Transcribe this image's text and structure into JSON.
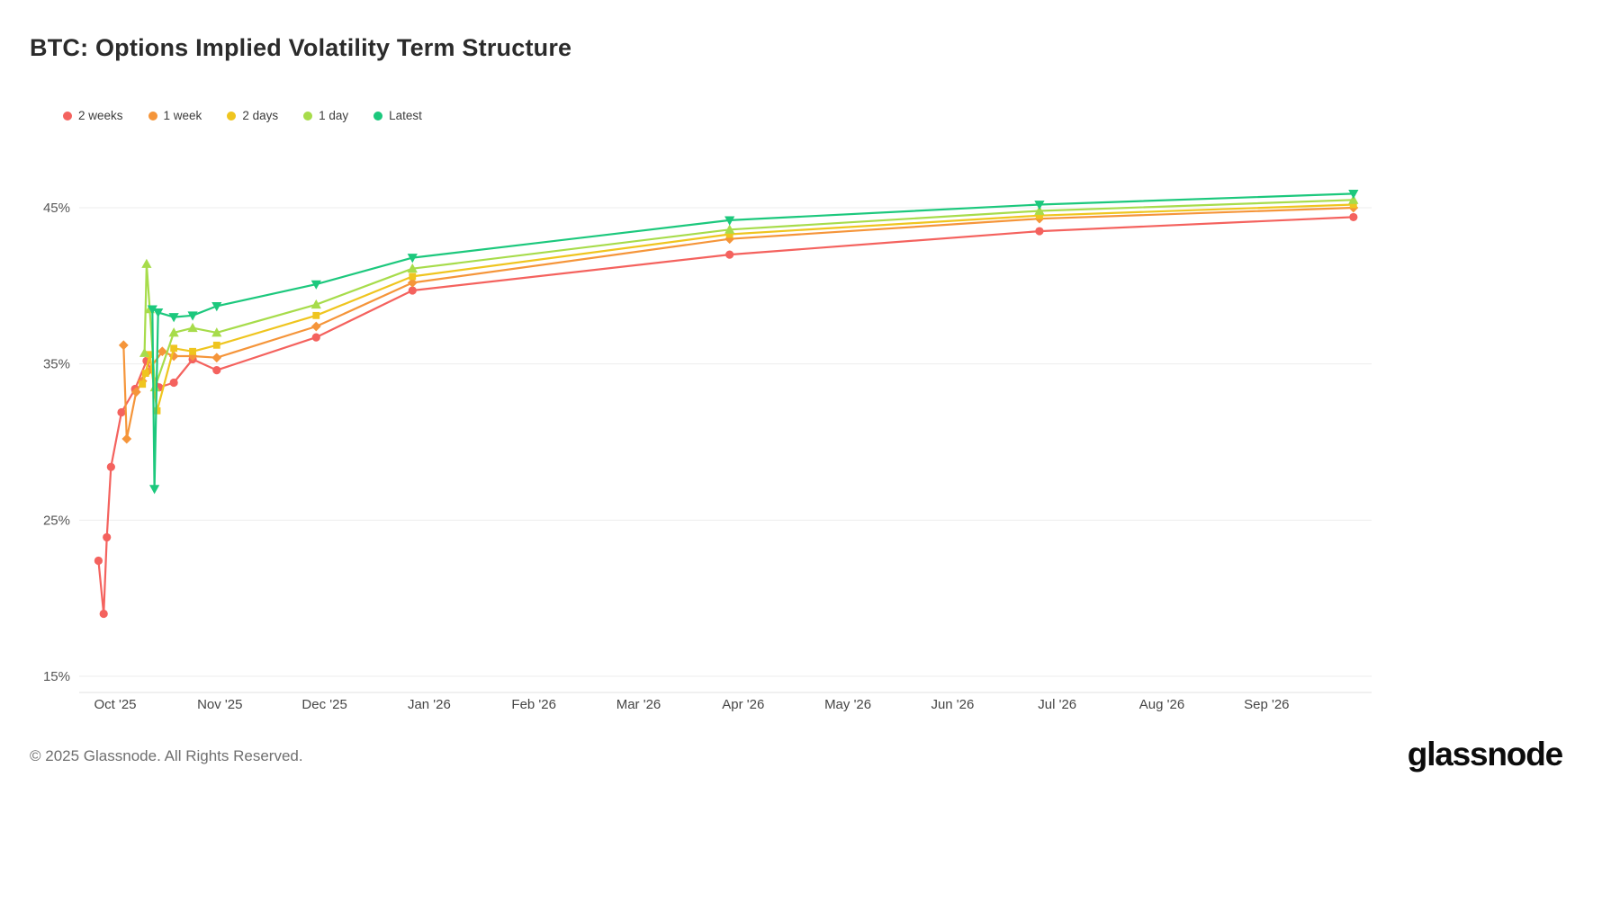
{
  "page": {
    "title": "BTC: Options Implied Volatility Term Structure",
    "footer_copyright": "© 2025 Glassnode. All Rights Reserved.",
    "brand_logo_text": "glassnode"
  },
  "chart_data": {
    "type": "line",
    "title": "BTC: Options Implied Volatility Term Structure",
    "xlabel": "",
    "ylabel": "",
    "x_unit": "option expiry, months after Oct 2025",
    "x_tick_labels": [
      "Oct '25",
      "Nov '25",
      "Dec '25",
      "Jan '26",
      "Feb '26",
      "Mar '26",
      "Apr '26",
      "May '26",
      "Jun '26",
      "Jul '26",
      "Aug '26",
      "Sep '26"
    ],
    "y_ticks": [
      15,
      25,
      35,
      45
    ],
    "y_tick_labels": [
      "15%",
      "25%",
      "35%",
      "45%"
    ],
    "ylim": [
      14,
      48
    ],
    "xlim_months": [
      -0.35,
      12.05
    ],
    "grid": "horizontal",
    "legend_position": "top-left",
    "series": [
      {
        "name": "2 weeks",
        "color": "#f4625e",
        "marker": "circle",
        "points": [
          [
            -0.16,
            22.4
          ],
          [
            -0.11,
            19.0
          ],
          [
            -0.08,
            23.9
          ],
          [
            -0.04,
            28.4
          ],
          [
            0.06,
            31.9
          ],
          [
            0.19,
            33.4
          ],
          [
            0.3,
            35.2
          ],
          [
            0.42,
            33.5
          ],
          [
            0.56,
            33.8
          ],
          [
            0.74,
            35.3
          ],
          [
            0.97,
            34.6
          ],
          [
            1.92,
            36.7
          ],
          [
            2.84,
            39.7
          ],
          [
            5.87,
            42.0
          ],
          [
            8.83,
            43.5
          ],
          [
            11.83,
            44.4
          ]
        ]
      },
      {
        "name": "1 week",
        "color": "#f5953a",
        "marker": "diamond",
        "points": [
          [
            0.08,
            36.2
          ],
          [
            0.11,
            30.2
          ],
          [
            0.2,
            33.2
          ],
          [
            0.26,
            33.9
          ],
          [
            0.31,
            34.5
          ],
          [
            0.45,
            35.8
          ],
          [
            0.56,
            35.5
          ],
          [
            0.74,
            35.5
          ],
          [
            0.97,
            35.4
          ],
          [
            1.92,
            37.4
          ],
          [
            2.84,
            40.2
          ],
          [
            5.87,
            43.0
          ],
          [
            8.83,
            44.3
          ],
          [
            11.83,
            45.0
          ]
        ]
      },
      {
        "name": "2 days",
        "color": "#efc51f",
        "marker": "square",
        "points": [
          [
            0.26,
            33.7
          ],
          [
            0.29,
            34.4
          ],
          [
            0.33,
            35.6
          ],
          [
            0.4,
            32.0
          ],
          [
            0.56,
            36.0
          ],
          [
            0.74,
            35.8
          ],
          [
            0.97,
            36.2
          ],
          [
            1.92,
            38.1
          ],
          [
            2.84,
            40.6
          ],
          [
            5.87,
            43.3
          ],
          [
            8.83,
            44.5
          ],
          [
            11.83,
            45.2
          ]
        ]
      },
      {
        "name": "1 day",
        "color": "#a7dc4b",
        "marker": "triangle-up",
        "points": [
          [
            0.28,
            35.7
          ],
          [
            0.3,
            41.4
          ],
          [
            0.33,
            38.5
          ],
          [
            0.38,
            33.5
          ],
          [
            0.56,
            37.0
          ],
          [
            0.74,
            37.3
          ],
          [
            0.97,
            37.0
          ],
          [
            1.92,
            38.8
          ],
          [
            2.84,
            41.1
          ],
          [
            5.87,
            43.6
          ],
          [
            8.83,
            44.8
          ],
          [
            11.83,
            45.5
          ]
        ]
      },
      {
        "name": "Latest",
        "color": "#1cc87d",
        "marker": "triangle-down",
        "points": [
          [
            0.355,
            38.5
          ],
          [
            0.375,
            27.0
          ],
          [
            0.41,
            38.3
          ],
          [
            0.56,
            38.0
          ],
          [
            0.74,
            38.1
          ],
          [
            0.97,
            38.7
          ],
          [
            1.92,
            40.1
          ],
          [
            2.84,
            41.8
          ],
          [
            5.87,
            44.2
          ],
          [
            8.83,
            45.2
          ],
          [
            11.83,
            45.9
          ]
        ]
      }
    ]
  }
}
